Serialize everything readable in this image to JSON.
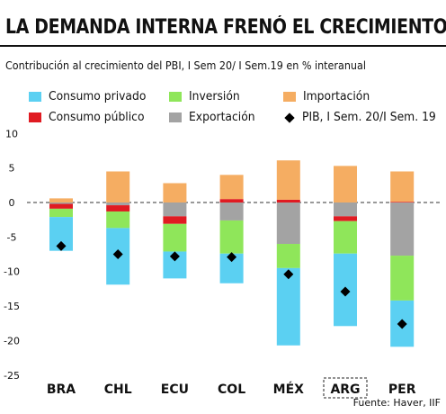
{
  "title": "LA DEMANDA INTERNA FRENÓ EL CRECIMIENTO",
  "subtitle": "Contribución al crecimiento del PBI, I Sem 20/ I Sem.19 en % interanual",
  "source": "Fuente: Haver, IIF",
  "colors": {
    "consumo_privado": "#5bd0f2",
    "inversion": "#8fe65a",
    "importacion": "#f5ad62",
    "consumo_publico": "#e01b22",
    "exportacion": "#a3a3a3",
    "pib": "#000000"
  },
  "legend": [
    {
      "key": "consumo_privado",
      "label": "Consumo privado",
      "marker": "square"
    },
    {
      "key": "inversion",
      "label": "Inversión",
      "marker": "square"
    },
    {
      "key": "importacion",
      "label": "Importación",
      "marker": "square"
    },
    {
      "key": "consumo_publico",
      "label": "Consumo público",
      "marker": "square"
    },
    {
      "key": "exportacion",
      "label": "Exportación",
      "marker": "square"
    },
    {
      "key": "pib",
      "label": "PIB, I Sem. 20/I Sem. 19",
      "marker": "diamond"
    }
  ],
  "chart_data": {
    "type": "bar",
    "stacked": true,
    "title": "LA DEMANDA INTERNA FRENÓ EL CRECIMIENTO",
    "subtitle": "Contribución al crecimiento del PBI, I Sem 20/ I Sem.19 en % interanual",
    "categories": [
      "BRA",
      "CHL",
      "ECU",
      "COL",
      "MÉX",
      "ARG",
      "PER"
    ],
    "highlighted_category": "ARG",
    "ylim": [
      -25,
      10
    ],
    "yticks": [
      10,
      5,
      0,
      -5,
      -10,
      -15,
      -20,
      -25
    ],
    "grid": false,
    "series": [
      {
        "key": "consumo_privado",
        "name": "Consumo privado",
        "values": [
          -4.9,
          -8.2,
          -3.9,
          -4.3,
          -11.2,
          -10.5,
          -6.7
        ]
      },
      {
        "key": "inversion",
        "name": "Inversión",
        "values": [
          -1.2,
          -2.4,
          -4.0,
          -4.8,
          -3.5,
          -4.7,
          -6.5
        ]
      },
      {
        "key": "importacion",
        "name": "Importación",
        "values": [
          0.6,
          4.5,
          2.8,
          3.5,
          5.7,
          5.3,
          4.4
        ]
      },
      {
        "key": "consumo_publico",
        "name": "Consumo público",
        "values": [
          -0.7,
          -0.9,
          -1.1,
          0.5,
          0.4,
          -0.7,
          0.1
        ]
      },
      {
        "key": "exportacion",
        "name": "Exportación",
        "values": [
          -0.2,
          -0.4,
          -2.0,
          -2.6,
          -6.0,
          -2.0,
          -7.7
        ]
      },
      {
        "key": "pib",
        "name": "PIB, I Sem. 20/I Sem. 19",
        "type": "marker",
        "values": [
          -6.3,
          -7.5,
          -7.8,
          -7.9,
          -10.4,
          -12.9,
          -17.6
        ]
      }
    ],
    "stack_order_negative": [
      "exportacion",
      "consumo_publico",
      "inversion",
      "consumo_privado"
    ],
    "stack_order_positive": [
      "consumo_publico",
      "importacion"
    ]
  }
}
